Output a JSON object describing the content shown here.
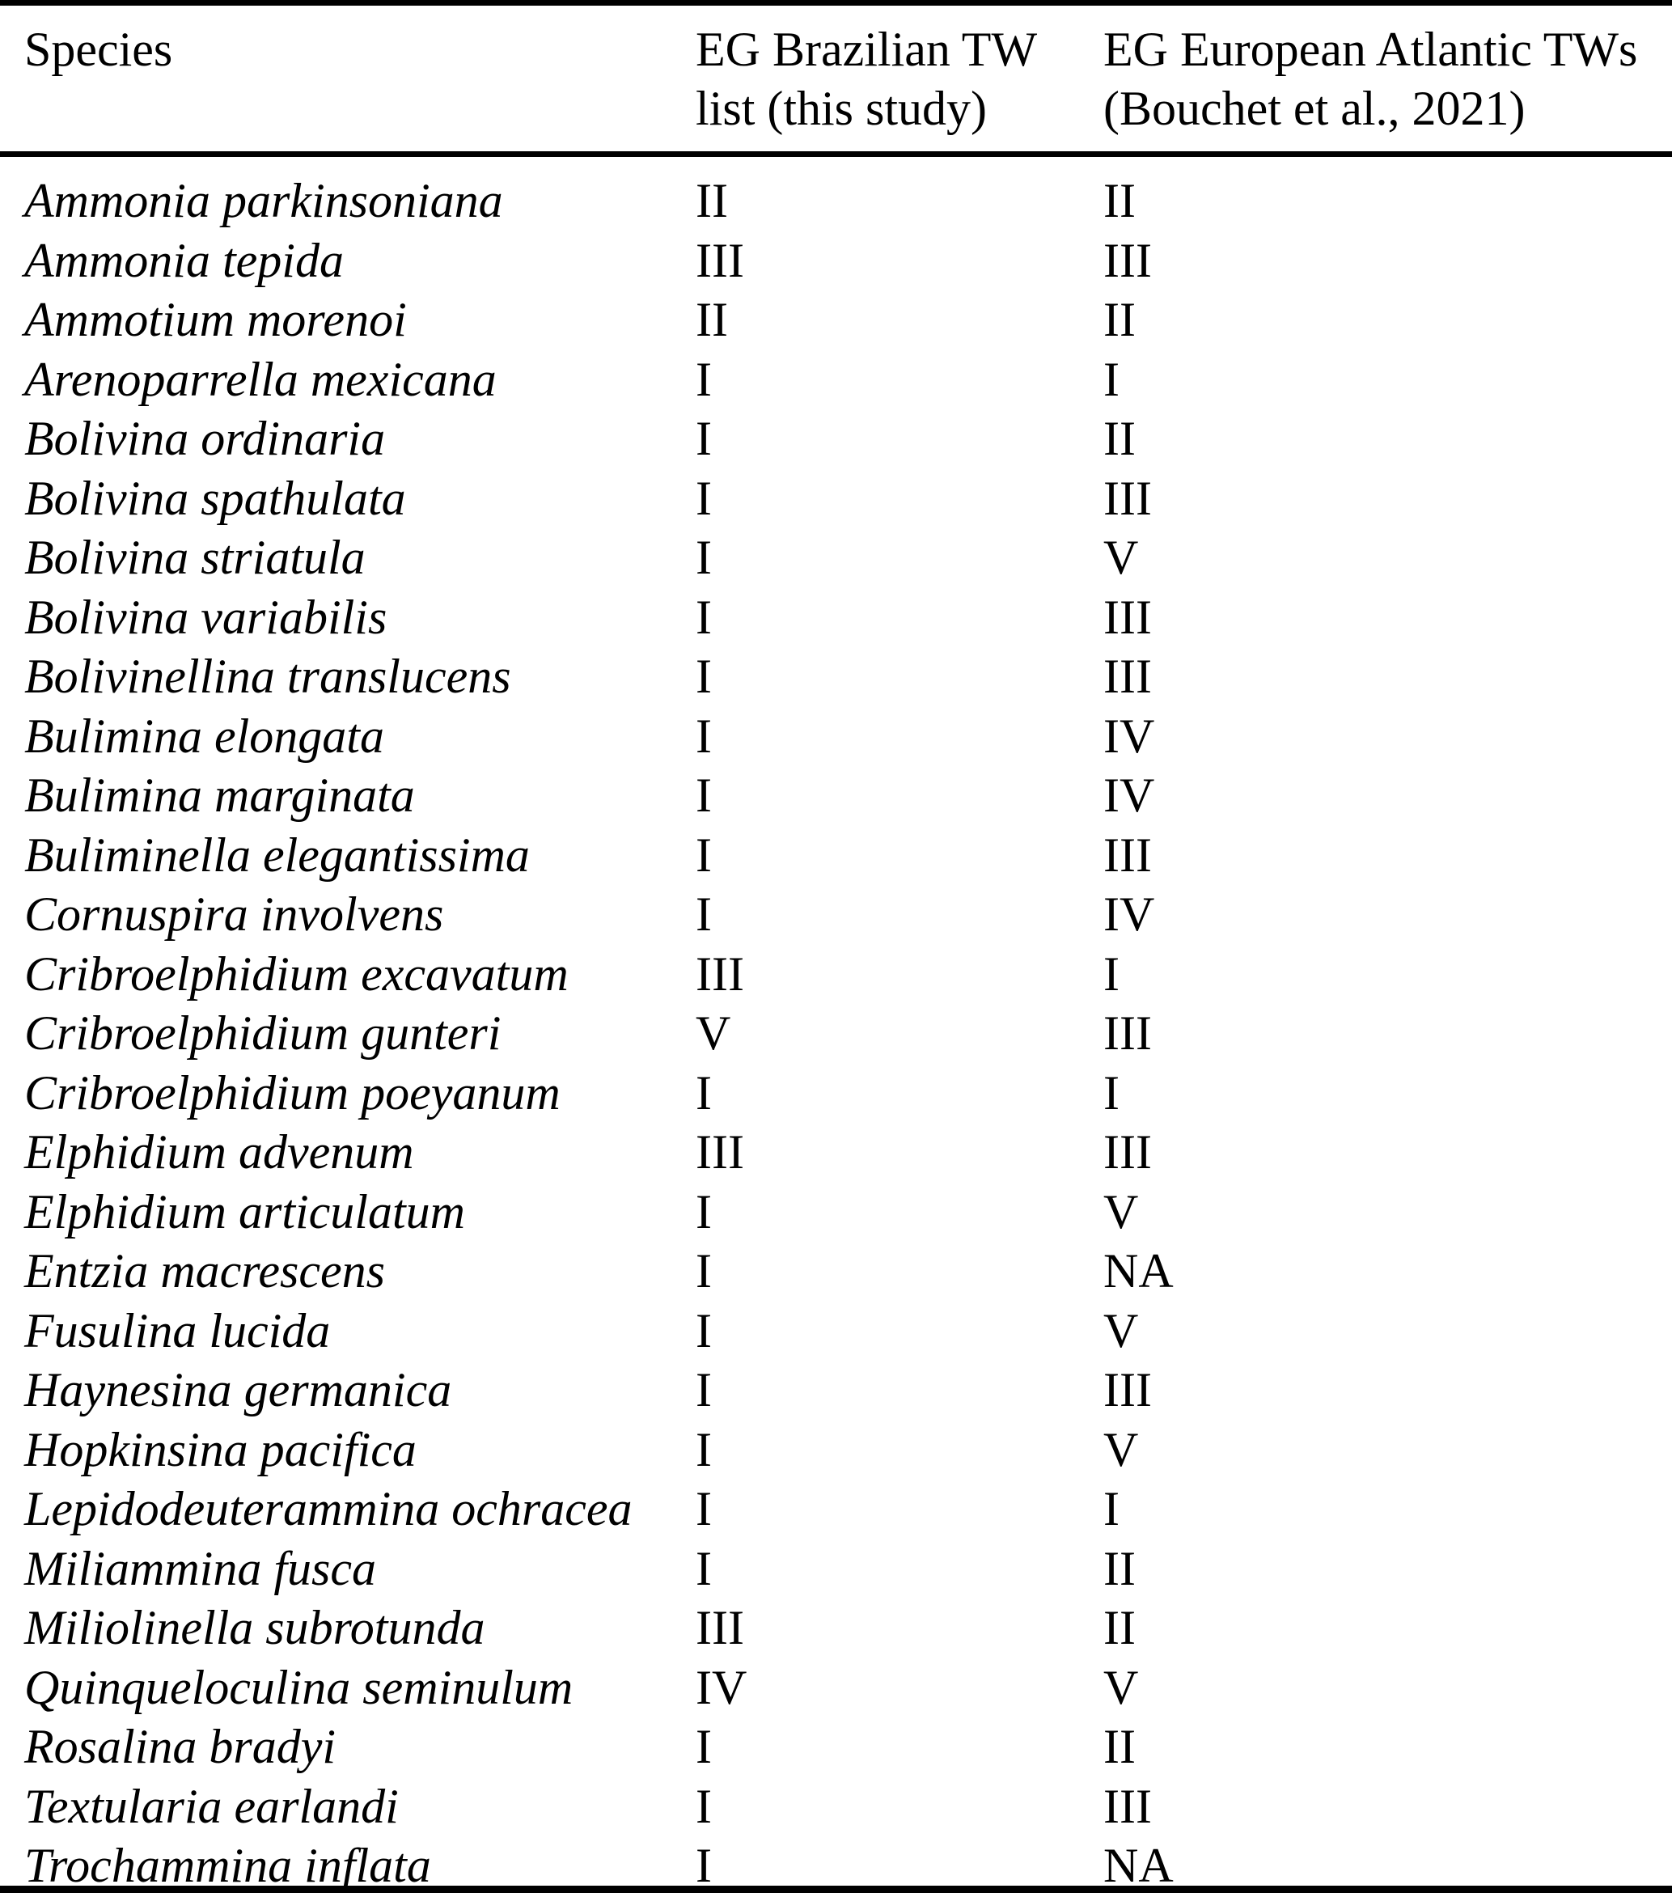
{
  "page": {
    "background_color": "#ffffff",
    "text_color": "#000000",
    "rule_color": "#000000"
  },
  "table": {
    "headers": {
      "species": "Species",
      "eg_brazilian_line1": "EG Brazilian TW",
      "eg_brazilian_line2": "list (this study)",
      "eg_european_line1": "EG European Atlantic TWs",
      "eg_european_line2": "(Bouchet et al., 2021)"
    },
    "rows": [
      {
        "species": "Ammonia parkinsoniana",
        "eg_brazilian": "II",
        "eg_european": "II"
      },
      {
        "species": "Ammonia tepida",
        "eg_brazilian": "III",
        "eg_european": "III"
      },
      {
        "species": "Ammotium morenoi",
        "eg_brazilian": "II",
        "eg_european": "II"
      },
      {
        "species": "Arenoparrella mexicana",
        "eg_brazilian": "I",
        "eg_european": "I"
      },
      {
        "species": "Bolivina ordinaria",
        "eg_brazilian": "I",
        "eg_european": "II"
      },
      {
        "species": "Bolivina spathulata",
        "eg_brazilian": "I",
        "eg_european": "III"
      },
      {
        "species": "Bolivina striatula",
        "eg_brazilian": "I",
        "eg_european": "V"
      },
      {
        "species": "Bolivina variabilis",
        "eg_brazilian": "I",
        "eg_european": "III"
      },
      {
        "species": "Bolivinellina translucens",
        "eg_brazilian": "I",
        "eg_european": "III"
      },
      {
        "species": "Bulimina elongata",
        "eg_brazilian": "I",
        "eg_european": "IV"
      },
      {
        "species": "Bulimina marginata",
        "eg_brazilian": "I",
        "eg_european": "IV"
      },
      {
        "species": "Buliminella elegantissima",
        "eg_brazilian": "I",
        "eg_european": "III"
      },
      {
        "species": "Cornuspira involvens",
        "eg_brazilian": "I",
        "eg_european": "IV"
      },
      {
        "species": "Cribroelphidium excavatum",
        "eg_brazilian": "III",
        "eg_european": "I"
      },
      {
        "species": "Cribroelphidium gunteri",
        "eg_brazilian": "V",
        "eg_european": "III"
      },
      {
        "species": "Cribroelphidium poeyanum",
        "eg_brazilian": "I",
        "eg_european": "I"
      },
      {
        "species": "Elphidium advenum",
        "eg_brazilian": "III",
        "eg_european": "III"
      },
      {
        "species": "Elphidium articulatum",
        "eg_brazilian": "I",
        "eg_european": "V"
      },
      {
        "species": "Entzia macrescens",
        "eg_brazilian": "I",
        "eg_european": "NA"
      },
      {
        "species": "Fusulina lucida",
        "eg_brazilian": "I",
        "eg_european": "V"
      },
      {
        "species": "Haynesina germanica",
        "eg_brazilian": "I",
        "eg_european": "III"
      },
      {
        "species": "Hopkinsina pacifica",
        "eg_brazilian": "I",
        "eg_european": "V"
      },
      {
        "species": "Lepidodeuterammina ochracea",
        "eg_brazilian": "I",
        "eg_european": "I"
      },
      {
        "species": "Miliammina fusca",
        "eg_brazilian": "I",
        "eg_european": "II"
      },
      {
        "species": "Miliolinella subrotunda",
        "eg_brazilian": "III",
        "eg_european": "II"
      },
      {
        "species": "Quinqueloculina seminulum",
        "eg_brazilian": "IV",
        "eg_european": "V"
      },
      {
        "species": "Rosalina bradyi",
        "eg_brazilian": "I",
        "eg_european": "II"
      },
      {
        "species": "Textularia earlandi",
        "eg_brazilian": "I",
        "eg_european": "III"
      },
      {
        "species": "Trochammina inflata",
        "eg_brazilian": "I",
        "eg_european": "NA"
      }
    ]
  }
}
